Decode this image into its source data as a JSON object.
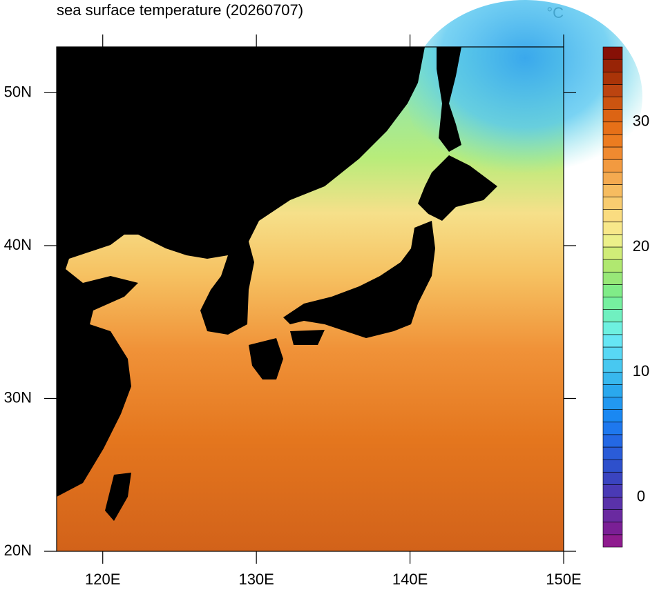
{
  "chart_data": {
    "type": "map",
    "title": "sea surface temperature (20260707)",
    "unit": "°C",
    "xlim": [
      117,
      150
    ],
    "ylim": [
      20,
      53
    ],
    "xticks": [
      {
        "value": 120,
        "label": "120E"
      },
      {
        "value": 130,
        "label": "130E"
      },
      {
        "value": 140,
        "label": "140E"
      },
      {
        "value": 150,
        "label": "150E"
      }
    ],
    "yticks": [
      {
        "value": 20,
        "label": "20N"
      },
      {
        "value": 30,
        "label": "30N"
      },
      {
        "value": 40,
        "label": "40N"
      },
      {
        "value": 50,
        "label": "50N"
      }
    ],
    "colorbar": {
      "lim": [
        -4,
        36
      ],
      "ticks": [
        0,
        10,
        20,
        30
      ],
      "levels": [
        -4,
        -3,
        -2,
        -1,
        0,
        1,
        2,
        3,
        4,
        5,
        6,
        7,
        8,
        9,
        10,
        11,
        12,
        13,
        14,
        15,
        16,
        17,
        18,
        19,
        20,
        21,
        22,
        23,
        24,
        25,
        26,
        27,
        28,
        29,
        30,
        31,
        32,
        33,
        34,
        35,
        36
      ],
      "colors": [
        "#8e1b8e",
        "#7a1f95",
        "#6a2aa0",
        "#5a32aa",
        "#4a3ab5",
        "#3a44c0",
        "#2e50cc",
        "#2a5cd8",
        "#2468e4",
        "#1e78ee",
        "#1a88f2",
        "#2298f0",
        "#2aa8ee",
        "#38b8ee",
        "#48c8f0",
        "#58d8f4",
        "#66e6f4",
        "#6ef0e0",
        "#70f0c0",
        "#76f0a0",
        "#80ec88",
        "#98e878",
        "#b0e870",
        "#d0ec78",
        "#ecf08a",
        "#f8e88a",
        "#fadc80",
        "#f8cc70",
        "#f6bc60",
        "#f4aa50",
        "#f29a40",
        "#f08a30",
        "#ec7c20",
        "#e67018",
        "#dc6414",
        "#cc5410",
        "#bc4410",
        "#aa3408",
        "#982406",
        "#861006"
      ]
    }
  }
}
